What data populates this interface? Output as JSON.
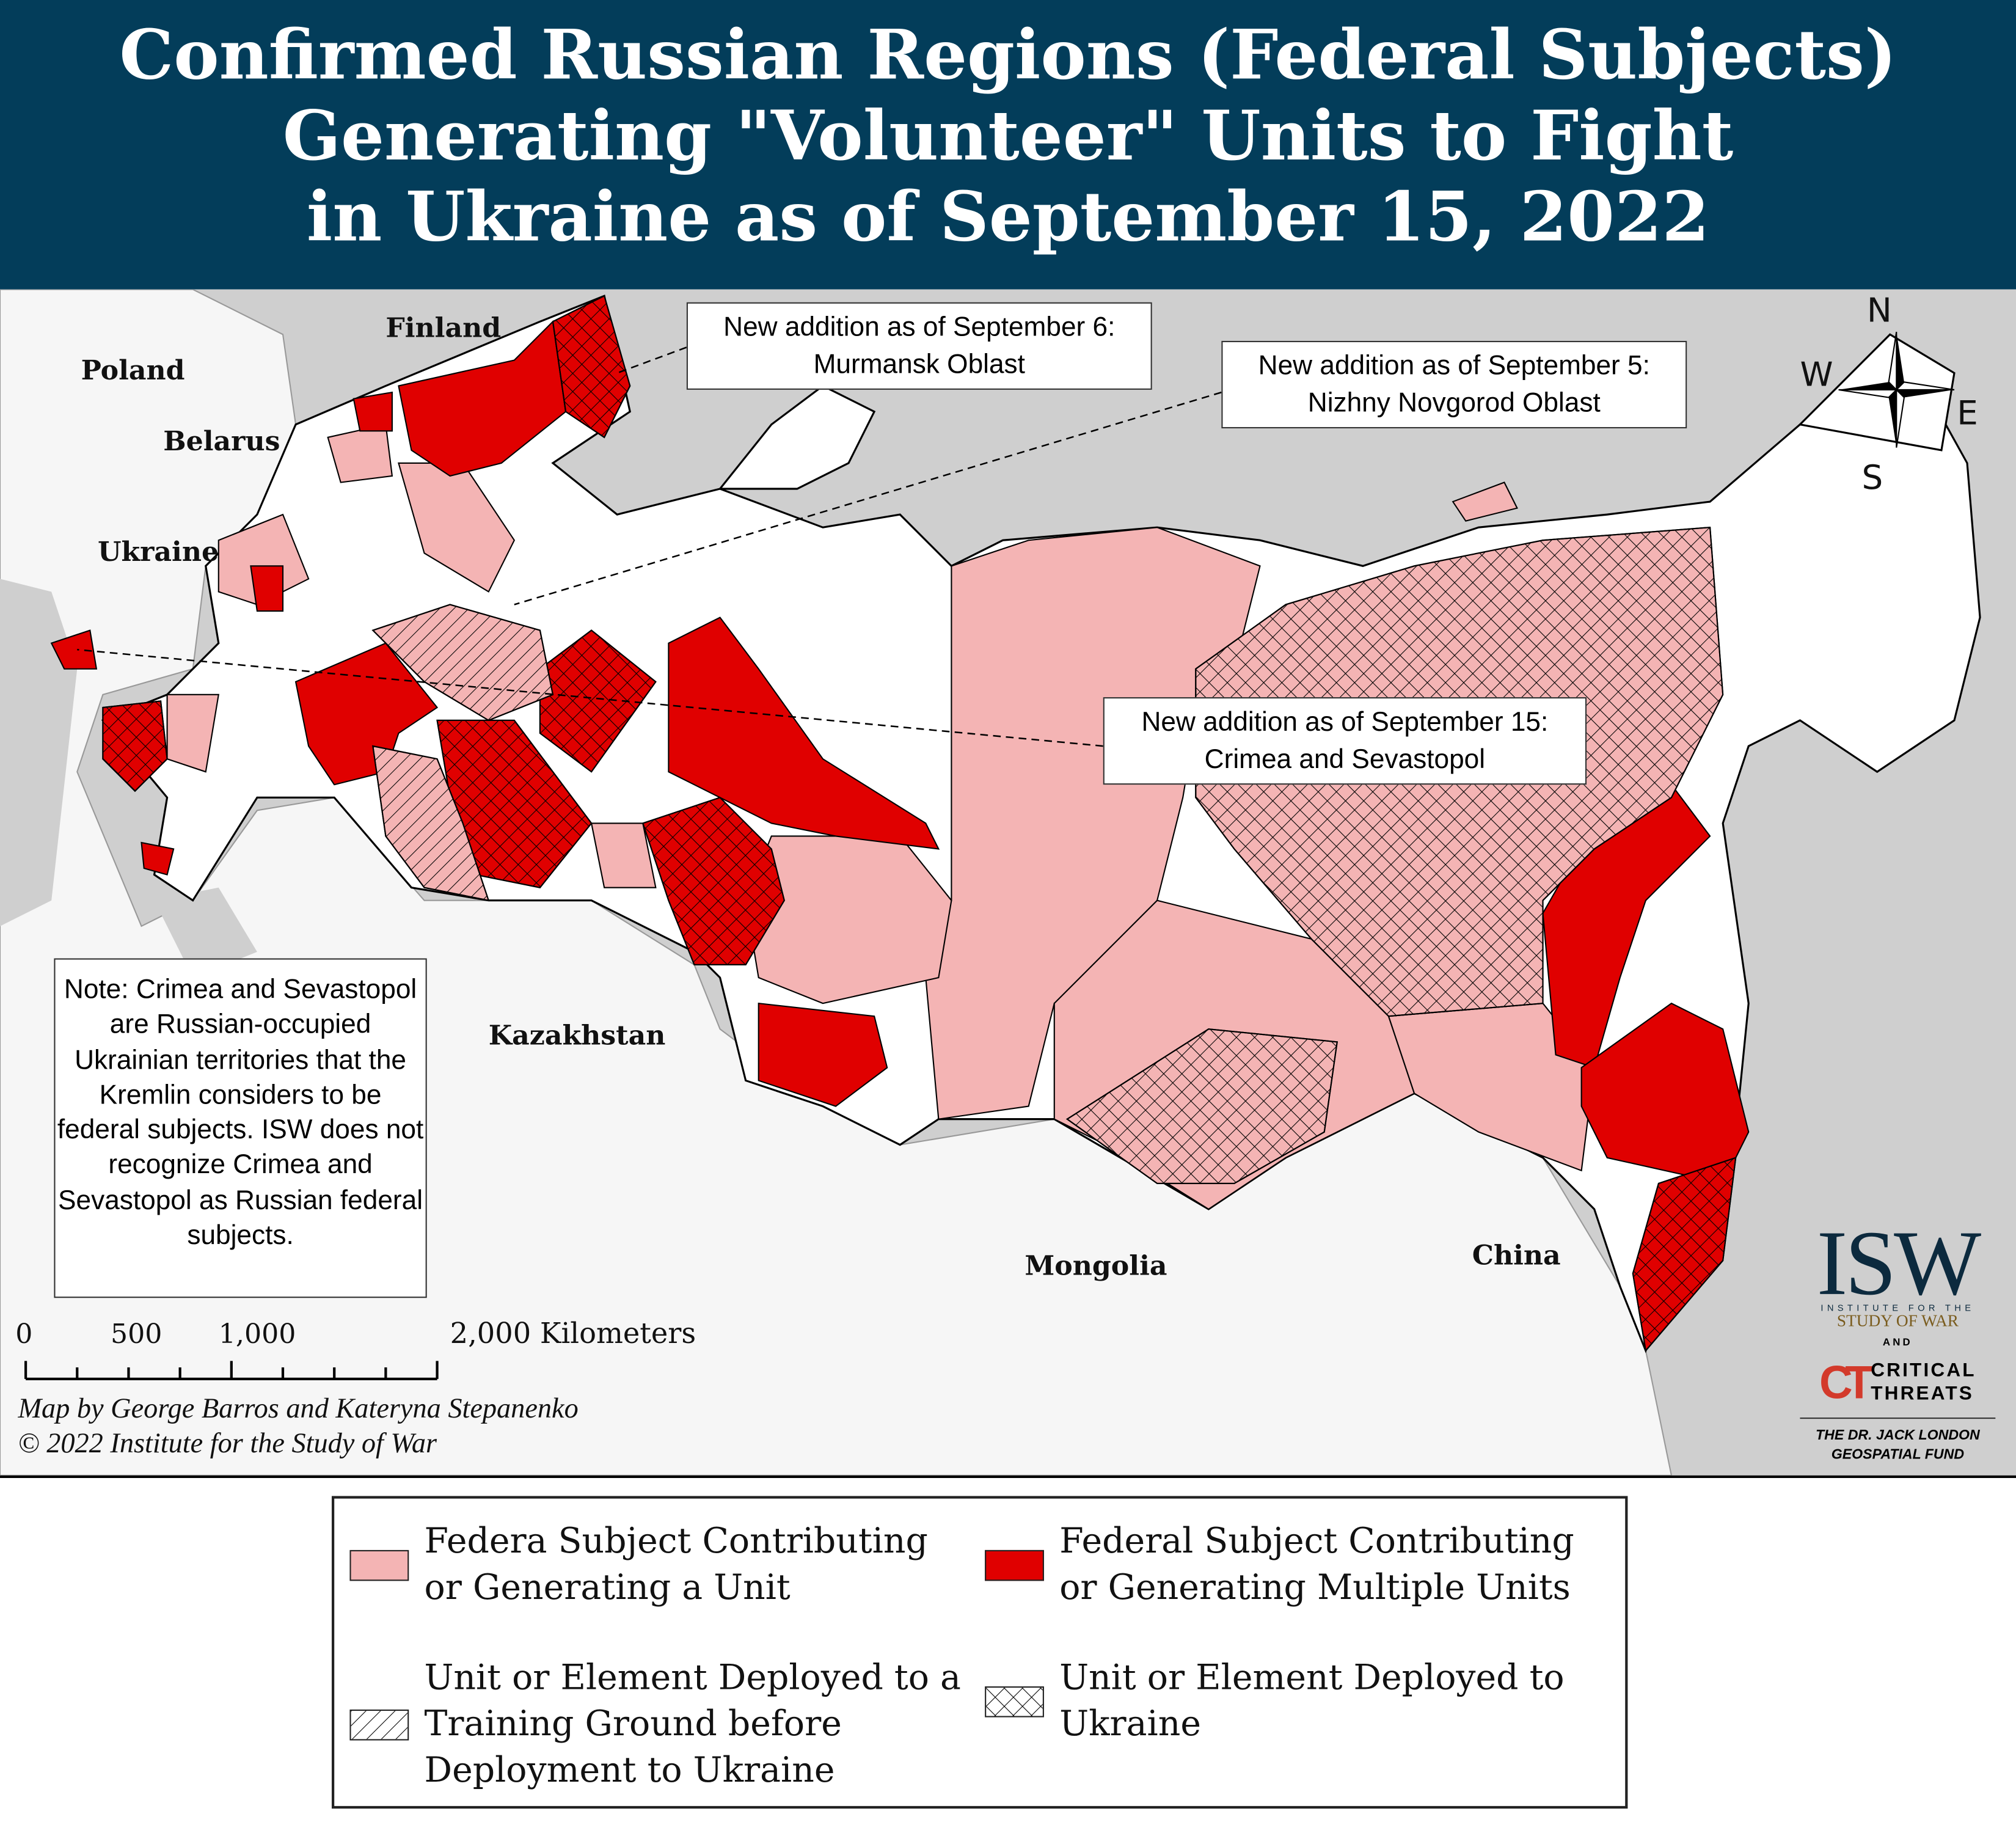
{
  "header": {
    "title_lines": [
      "Confirmed Russian Regions (Federal Subjects)",
      "Generating \"Volunteer\" Units to Fight",
      "in Ukraine as of September 15, 2022"
    ]
  },
  "map": {
    "country_labels": {
      "finland": "Finland",
      "poland": "Poland",
      "belarus": "Belarus",
      "ukraine": "Ukraine",
      "kazakhstan": "Kazakhstan",
      "mongolia": "Mongolia",
      "china": "China"
    },
    "callouts": [
      {
        "line1": "New addition as of September 6:",
        "line2": "Murmansk Oblast"
      },
      {
        "line1": "New addition as of September 5:",
        "line2": "Nizhny Novgorod Oblast"
      },
      {
        "line1": "New addition as of September 15:",
        "line2": "Crimea and Sevastopol"
      }
    ],
    "note": "Note: Crimea and Sevastopol are Russian-occupied Ukrainian territories that the Kremlin considers to be federal subjects. ISW does not recognize Crimea and Sevastopol as Russian federal subjects.",
    "compass": {
      "n": "N",
      "s": "S",
      "e": "E",
      "w": "W"
    },
    "scale": {
      "labels": [
        "0",
        "500",
        "1,000",
        "2,000 Kilometers"
      ]
    },
    "credits": {
      "line1": "Map by George Barros and Kateryna Stepanenko",
      "line2": "© 2022 Institute for the Study of War"
    },
    "colors": {
      "single_unit": "#f4b4b4",
      "multiple_units": "#e00000",
      "sea": "#cfcfcf",
      "land": "#f6f6f6",
      "header_bg": "#033d5a"
    }
  },
  "logo": {
    "isw": "ISW",
    "isw_sub1": "INSTITUTE FOR THE",
    "isw_sub2": "STUDY OF WAR",
    "and": "AND",
    "ct_mark": "CT",
    "ct_line1": "CRITICAL",
    "ct_line2": "THREATS",
    "fund_line1": "THE DR. JACK LONDON",
    "fund_line2": "GEOSPATIAL FUND"
  },
  "legend": {
    "items": [
      {
        "label_l1": "Federa Subject Contributing",
        "label_l2": "or Generating a Unit",
        "label_l3": "",
        "style": "pink-fill"
      },
      {
        "label_l1": "Federal Subject Contributing",
        "label_l2": "or Generating Multiple Units",
        "label_l3": "",
        "style": "red-fill"
      },
      {
        "label_l1": "Unit or Element Deployed to a",
        "label_l2": "Training Ground before",
        "label_l3": "Deployment to Ukraine",
        "style": "diagonal-hatch"
      },
      {
        "label_l1": "Unit or Element Deployed to",
        "label_l2": "Ukraine",
        "label_l3": "",
        "style": "cross-hatch"
      }
    ]
  }
}
